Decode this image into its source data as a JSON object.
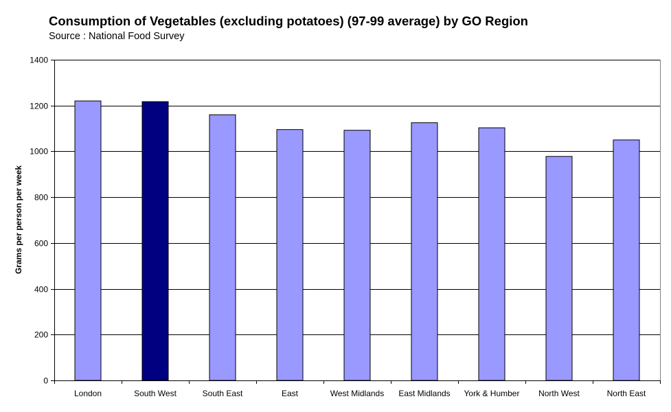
{
  "chart_data": {
    "type": "bar",
    "title": "Consumption of Vegetables (excluding potatoes) (97-99 average) by GO Region",
    "subtitle": "Source : National Food Survey",
    "xlabel": "",
    "ylabel": "Grams per person per week",
    "ylim": [
      0,
      1400
    ],
    "yticks": [
      0,
      200,
      400,
      600,
      800,
      1000,
      1200,
      1400
    ],
    "grid": true,
    "legend": "none",
    "categories": [
      "London",
      "South West",
      "South East",
      "East",
      "West Midlands",
      "East Midlands",
      "York & Humber",
      "North West",
      "North East"
    ],
    "values": [
      1220,
      1217,
      1160,
      1095,
      1092,
      1125,
      1103,
      978,
      1050
    ],
    "colors": {
      "bar": "#9999ff",
      "highlight": "#000080",
      "highlight_category": "South West",
      "grid": "#000000"
    }
  }
}
